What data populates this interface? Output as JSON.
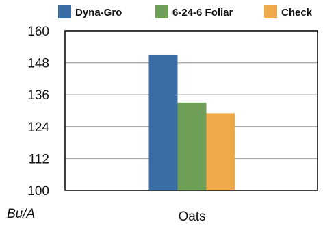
{
  "chart_data": {
    "type": "bar",
    "categories": [
      "Oats"
    ],
    "series": [
      {
        "name": "Dyna-Gro",
        "values": [
          151
        ],
        "color": "#3a6ea5"
      },
      {
        "name": "6-24-6 Foliar",
        "values": [
          133
        ],
        "color": "#6f9e58"
      },
      {
        "name": "Check",
        "values": [
          129
        ],
        "color": "#eeaa4b"
      }
    ],
    "y_ticks": [
      "100",
      "112",
      "124",
      "136",
      "148",
      "160"
    ],
    "ylim": [
      100,
      160
    ],
    "ylabel": "Bu/A",
    "xlabel": "",
    "title": "",
    "grid": true,
    "legend_position": "top-right"
  }
}
